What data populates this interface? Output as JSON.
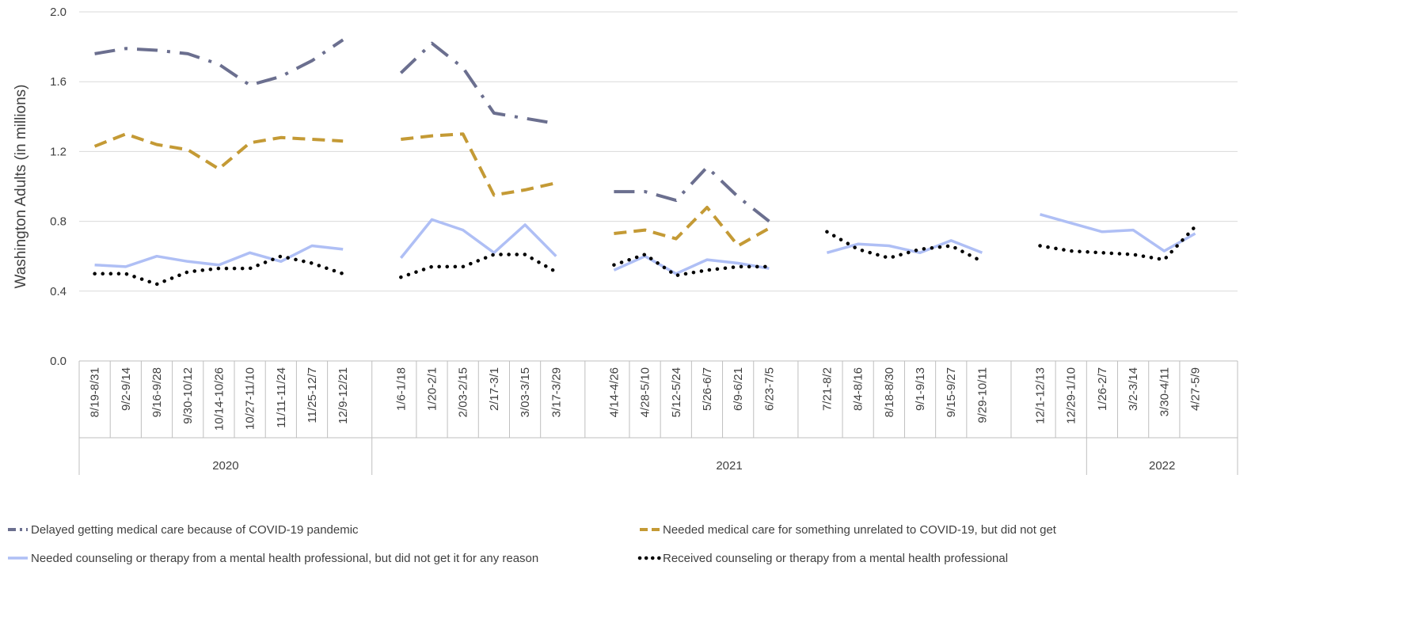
{
  "chart_data": {
    "type": "line",
    "ylabel": "Washington Adults (in millions)",
    "xlabel": "",
    "title": "",
    "ylim": [
      0,
      2.0
    ],
    "yticks": [
      "0.0",
      "0.4",
      "0.8",
      "1.2",
      "1.6",
      "2.0"
    ],
    "grid": "horizontal",
    "legend_position": "bottom",
    "categories": [
      "8/19-8/31",
      "9/2-9/14",
      "9/16-9/28",
      "9/30-10/12",
      "10/14-10/26",
      "10/27-11/10",
      "11/11-11/24",
      "11/25-12/7",
      "12/9-12/21",
      "1/6-1/18",
      "1/20-2/1",
      "2/03-2/15",
      "2/17-3/1",
      "3/03-3/15",
      "3/17-3/29",
      "4/14-4/26",
      "4/28-5/10",
      "5/12-5/24",
      "5/26-6/7",
      "6/9-6/21",
      "6/23-7/5",
      "7/21-8/2",
      "8/4-8/16",
      "8/18-8/30",
      "9/1-9/13",
      "9/15-9/27",
      "9/29-10/11",
      "12/1-12/13",
      "12/29-1/10",
      "1/26-2/7",
      "3/2-3/14",
      "3/30-4/11",
      "4/27-5/9"
    ],
    "segments": [
      9,
      6,
      6,
      6,
      6
    ],
    "years": [
      {
        "label": "2020",
        "start": 0,
        "end": 8
      },
      {
        "label": "2021",
        "start": 9,
        "end": 28
      },
      {
        "label": "2022",
        "start": 29,
        "end": 32
      }
    ],
    "series": [
      {
        "name": "Delayed getting medical care because of COVID-19 pandemic",
        "color": "#6B6F8F",
        "style": "dashdot",
        "values": [
          1.76,
          1.79,
          1.78,
          1.76,
          1.7,
          1.58,
          1.63,
          1.72,
          1.84,
          1.65,
          1.82,
          1.68,
          1.42,
          1.39,
          1.36,
          0.97,
          0.97,
          0.92,
          1.11,
          0.94,
          0.8,
          null,
          null,
          null,
          null,
          null,
          null,
          null,
          null,
          null,
          null,
          null,
          null
        ]
      },
      {
        "name": "Needed medical care for something unrelated to COVID-19, but did not get",
        "color": "#C49A35",
        "style": "dashed",
        "values": [
          1.23,
          1.3,
          1.24,
          1.21,
          1.1,
          1.25,
          1.28,
          1.27,
          1.26,
          1.27,
          1.29,
          1.3,
          0.95,
          0.98,
          1.02,
          0.73,
          0.75,
          0.7,
          0.88,
          0.66,
          0.76,
          null,
          null,
          null,
          null,
          null,
          null,
          null,
          null,
          null,
          null,
          null,
          null
        ]
      },
      {
        "name": "Needed counseling or therapy from a mental health professional, but did not get it for any reason",
        "color": "#AFBFF5",
        "style": "solid",
        "values": [
          0.55,
          0.54,
          0.6,
          0.57,
          0.55,
          0.62,
          0.57,
          0.66,
          0.64,
          0.59,
          0.81,
          0.75,
          0.62,
          0.78,
          0.6,
          0.52,
          0.6,
          0.5,
          0.58,
          0.56,
          0.53,
          0.62,
          0.67,
          0.66,
          0.62,
          0.69,
          0.62,
          0.84,
          0.79,
          0.74,
          0.75,
          0.63,
          0.73
        ]
      },
      {
        "name": "Received counseling or therapy from a mental health professional",
        "color": "#000000",
        "style": "dotted",
        "values": [
          0.5,
          0.5,
          0.44,
          0.51,
          0.53,
          0.53,
          0.6,
          0.56,
          0.5,
          0.48,
          0.54,
          0.54,
          0.61,
          0.61,
          0.51,
          0.55,
          0.61,
          0.49,
          0.52,
          0.54,
          0.54,
          0.74,
          0.64,
          0.59,
          0.64,
          0.66,
          0.57,
          0.66,
          0.63,
          0.62,
          0.61,
          0.58,
          0.77
        ]
      }
    ]
  }
}
